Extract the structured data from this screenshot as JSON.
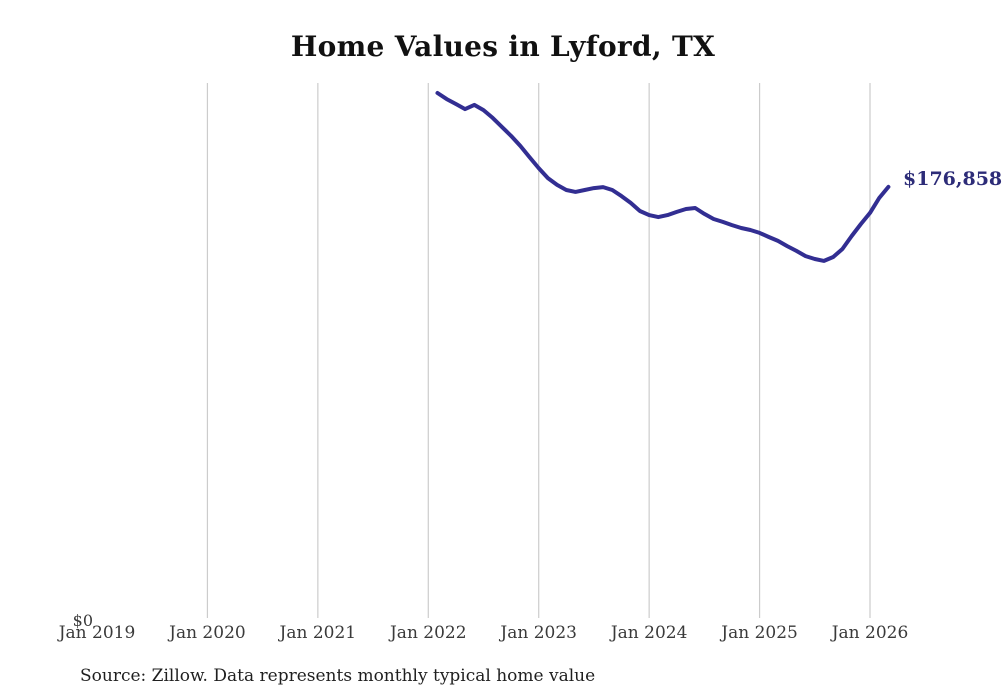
{
  "chart": {
    "title": "Home Values in Lyford, TX",
    "y_zero_label": "$0",
    "end_label": "$176,858",
    "source": "Source: Zillow. Data represents monthly typical home value",
    "colors": {
      "line": "#322e92",
      "end_label": "#2d2c78",
      "gridline": "#cccccc",
      "title_text": "#111111",
      "axis_text": "#3a3a3a",
      "source_text": "#1f1f1f",
      "background": "#ffffff"
    }
  },
  "chart_data": {
    "type": "line",
    "title": "Home Values in Lyford, TX",
    "xlabel": "",
    "ylabel": "",
    "grid": "vertical-only",
    "legend": "none",
    "ylim": [
      0,
      219500
    ],
    "x_axis": {
      "tick_labels": [
        "Jan 2019",
        "Jan 2020",
        "Jan 2021",
        "Jan 2022",
        "Jan 2023",
        "Jan 2024",
        "Jan 2025",
        "Jan 2026"
      ],
      "tick_month_index": [
        0,
        12,
        24,
        36,
        48,
        60,
        72,
        84
      ],
      "gridline_month_index": [
        12,
        24,
        36,
        48,
        60,
        72,
        84
      ],
      "months_per_tick": 12,
      "domain_month_index": [
        0,
        88
      ]
    },
    "series": [
      {
        "name": "Monthly typical home value",
        "start": "Feb 2022",
        "end": "Mar 2026",
        "start_month_index": 37,
        "values": [
          215400,
          212900,
          210900,
          208800,
          210500,
          208400,
          205200,
          201500,
          197800,
          193700,
          189100,
          184600,
          180500,
          177700,
          175600,
          174800,
          175600,
          176400,
          176800,
          175600,
          173100,
          170300,
          167000,
          165300,
          164500,
          165300,
          166600,
          167800,
          168200,
          165800,
          163700,
          162500,
          161200,
          160000,
          159200,
          158000,
          156300,
          154700,
          152600,
          150600,
          148500,
          147300,
          146500,
          148100,
          151400,
          156700,
          161600,
          166200,
          172300,
          176858
        ]
      }
    ],
    "latest_point": {
      "month": "Mar 2026",
      "value": 176858,
      "label": "$176,858"
    },
    "annotations": [
      {
        "text": "$176,858",
        "attached_to": "last-point"
      },
      {
        "text": "$0",
        "attached_to": "y-axis-bottom"
      }
    ]
  }
}
